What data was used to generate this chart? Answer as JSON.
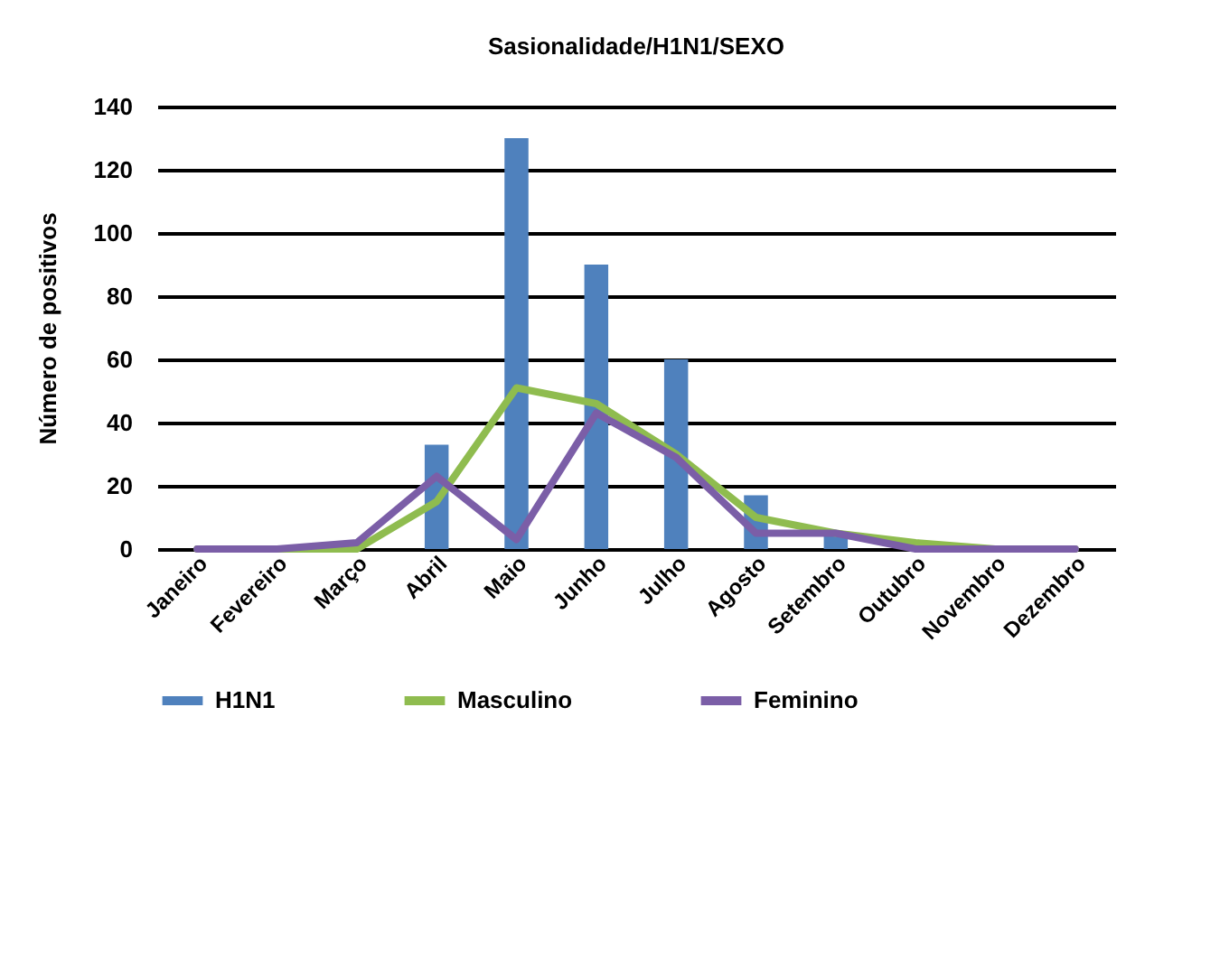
{
  "chart_data": {
    "type": "bar",
    "title": "Sasionalidade/H1N1/SEXO",
    "ylabel": "Número de positivos",
    "categories": [
      "Janeiro",
      "Fevereiro",
      "Março",
      "Abril",
      "Maio",
      "Junho",
      "Julho",
      "Agosto",
      "Setembro",
      "Outubro",
      "Novembro",
      "Dezembro"
    ],
    "series": [
      {
        "name": "H1N1",
        "color": "#4f81bd",
        "values": [
          0,
          0,
          0,
          33,
          130,
          90,
          60,
          17,
          4,
          0,
          0,
          0
        ]
      },
      {
        "name": "Masculino",
        "type": "line",
        "color": "#8fbc4f",
        "values": [
          0,
          0,
          0,
          15,
          51,
          46,
          30,
          10,
          5,
          2,
          0,
          0
        ]
      },
      {
        "name": "Feminino",
        "type": "line",
        "color": "#7b5ea7",
        "values": [
          0,
          0,
          2,
          23,
          3,
          43,
          29,
          5,
          5,
          0,
          0,
          0
        ]
      }
    ],
    "ylim": [
      0,
      140
    ],
    "yticks": [
      0,
      20,
      40,
      60,
      80,
      100,
      120,
      140
    ],
    "grid": "y",
    "legend": "bottom"
  }
}
